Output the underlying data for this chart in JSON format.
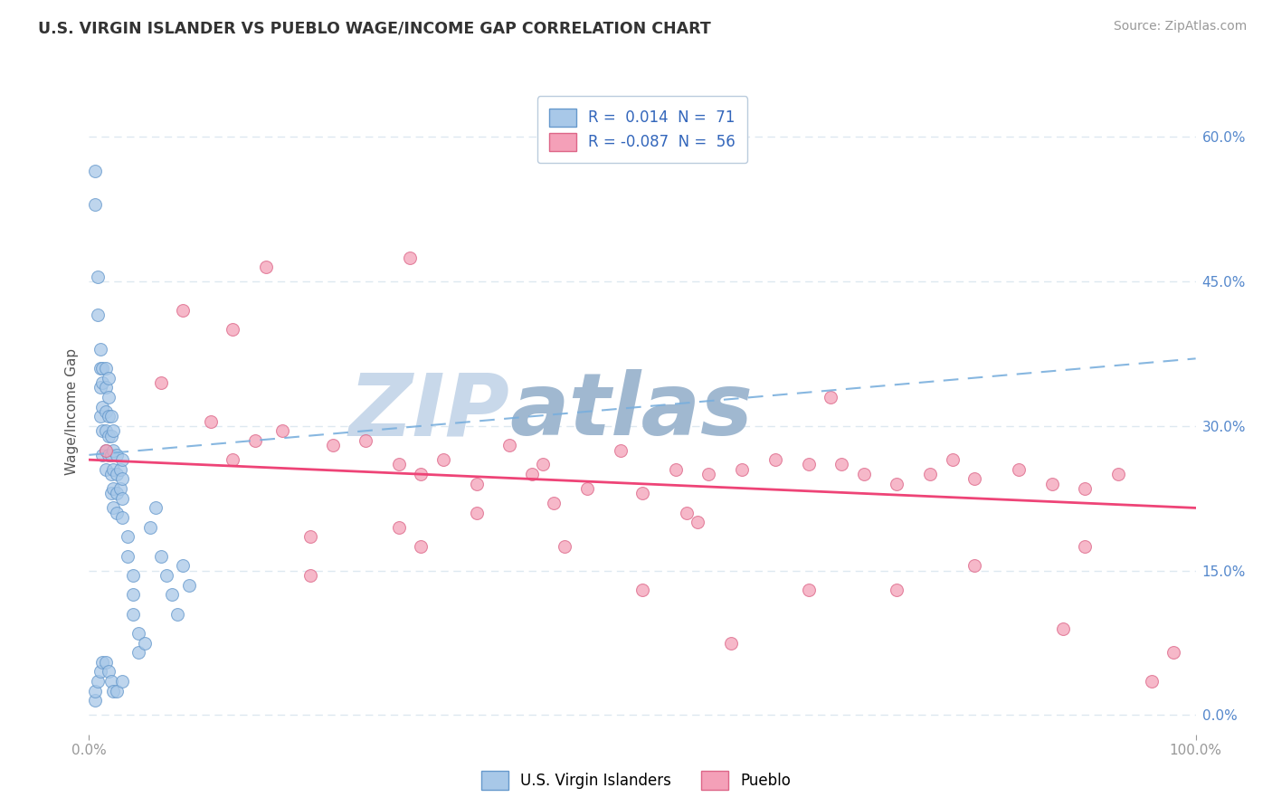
{
  "title": "U.S. VIRGIN ISLANDER VS PUEBLO WAGE/INCOME GAP CORRELATION CHART",
  "source_text": "Source: ZipAtlas.com",
  "ylabel": "Wage/Income Gap",
  "xlim": [
    0.0,
    1.0
  ],
  "ylim": [
    -0.02,
    0.65
  ],
  "ytick_positions_right": [
    0.0,
    0.15,
    0.3,
    0.45,
    0.6
  ],
  "ytick_labels_right": [
    "0.0%",
    "15.0%",
    "30.0%",
    "45.0%",
    "60.0%"
  ],
  "blue_r": 0.014,
  "blue_n": 71,
  "pink_r": -0.087,
  "pink_n": 56,
  "series1_color": "#a8c8e8",
  "series1_edge": "#6699cc",
  "series2_color": "#f4a0b8",
  "series2_edge": "#dd6688",
  "trend1_color": "#7aafdd",
  "trend2_color": "#ee4477",
  "watermark_color": "#ccd8e8",
  "watermark_text": "ZIPatlas",
  "background_color": "#ffffff",
  "grid_color": "#dde8f0",
  "blue_line_start": 0.27,
  "blue_line_end": 0.37,
  "pink_line_start": 0.265,
  "pink_line_end": 0.215,
  "series1_x": [
    0.005,
    0.005,
    0.008,
    0.008,
    0.01,
    0.01,
    0.01,
    0.01,
    0.012,
    0.012,
    0.012,
    0.012,
    0.012,
    0.015,
    0.015,
    0.015,
    0.015,
    0.015,
    0.015,
    0.018,
    0.018,
    0.018,
    0.018,
    0.018,
    0.02,
    0.02,
    0.02,
    0.02,
    0.02,
    0.022,
    0.022,
    0.022,
    0.022,
    0.022,
    0.025,
    0.025,
    0.025,
    0.025,
    0.028,
    0.028,
    0.03,
    0.03,
    0.03,
    0.03,
    0.035,
    0.035,
    0.04,
    0.04,
    0.04,
    0.045,
    0.045,
    0.05,
    0.055,
    0.06,
    0.065,
    0.07,
    0.075,
    0.08,
    0.085,
    0.09,
    0.005,
    0.005,
    0.008,
    0.01,
    0.012,
    0.015,
    0.018,
    0.02,
    0.022,
    0.025,
    0.03
  ],
  "series1_y": [
    0.565,
    0.53,
    0.455,
    0.415,
    0.38,
    0.36,
    0.34,
    0.31,
    0.36,
    0.345,
    0.32,
    0.295,
    0.27,
    0.36,
    0.34,
    0.315,
    0.295,
    0.275,
    0.255,
    0.35,
    0.33,
    0.31,
    0.29,
    0.27,
    0.31,
    0.29,
    0.27,
    0.25,
    0.23,
    0.295,
    0.275,
    0.255,
    0.235,
    0.215,
    0.27,
    0.25,
    0.23,
    0.21,
    0.255,
    0.235,
    0.265,
    0.245,
    0.225,
    0.205,
    0.185,
    0.165,
    0.145,
    0.125,
    0.105,
    0.085,
    0.065,
    0.075,
    0.195,
    0.215,
    0.165,
    0.145,
    0.125,
    0.105,
    0.155,
    0.135,
    0.015,
    0.025,
    0.035,
    0.045,
    0.055,
    0.055,
    0.045,
    0.035,
    0.025,
    0.025,
    0.035
  ],
  "series2_x": [
    0.015,
    0.065,
    0.085,
    0.11,
    0.13,
    0.15,
    0.175,
    0.2,
    0.22,
    0.25,
    0.28,
    0.3,
    0.32,
    0.35,
    0.38,
    0.4,
    0.42,
    0.45,
    0.48,
    0.5,
    0.53,
    0.56,
    0.59,
    0.62,
    0.65,
    0.68,
    0.7,
    0.73,
    0.76,
    0.8,
    0.84,
    0.87,
    0.9,
    0.93,
    0.96,
    0.98,
    0.16,
    0.29,
    0.41,
    0.54,
    0.67,
    0.78,
    0.9,
    0.2,
    0.35,
    0.5,
    0.65,
    0.8,
    0.13,
    0.28,
    0.43,
    0.58,
    0.73,
    0.88,
    0.3,
    0.55
  ],
  "series2_y": [
    0.275,
    0.345,
    0.42,
    0.305,
    0.265,
    0.285,
    0.295,
    0.185,
    0.28,
    0.285,
    0.26,
    0.25,
    0.265,
    0.24,
    0.28,
    0.25,
    0.22,
    0.235,
    0.275,
    0.23,
    0.255,
    0.25,
    0.255,
    0.265,
    0.26,
    0.26,
    0.25,
    0.24,
    0.25,
    0.245,
    0.255,
    0.24,
    0.235,
    0.25,
    0.035,
    0.065,
    0.465,
    0.475,
    0.26,
    0.21,
    0.33,
    0.265,
    0.175,
    0.145,
    0.21,
    0.13,
    0.13,
    0.155,
    0.4,
    0.195,
    0.175,
    0.075,
    0.13,
    0.09,
    0.175,
    0.2
  ]
}
